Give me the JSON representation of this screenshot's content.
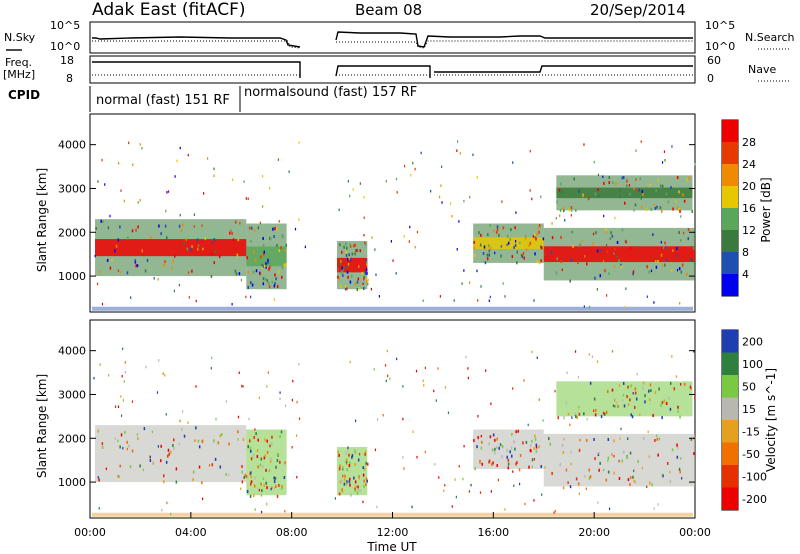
{
  "header": {
    "title": "Adak East (fitACF)",
    "beam": "Beam 08",
    "date": "20/Sep/2014"
  },
  "panels": {
    "nsky_label": "N.Sky",
    "nsky_tick_top": "10^5",
    "nsky_tick_bottom": "10^0",
    "nsearch_label": "N.Search",
    "freq_label_1": "Freq.",
    "freq_label_2": "[MHz]",
    "freq_tick_top": "18",
    "freq_tick_bottom": "8",
    "nave_label": "Nave",
    "nave_tick_top": "60",
    "nave_tick_bottom": "0",
    "cpid_label": "CPID",
    "cpid_segments": [
      "normal (fast) 151 RF",
      "normalsound (fast) 157 RF"
    ]
  },
  "colors": {
    "power_scale": [
      "#0000ee",
      "#1f4fb0",
      "#3a7a3a",
      "#5aa65a",
      "#e6c700",
      "#f08a00",
      "#e63a00",
      "#ee0000"
    ],
    "velocity_scale": [
      "#1f3fb0",
      "#2f7f3f",
      "#7ac943",
      "#b8b8b0",
      "#e6a020",
      "#f07000",
      "#e63000",
      "#ee0000"
    ]
  },
  "chart_data": [
    {
      "type": "heatmap",
      "name": "Power",
      "ylabel": "Slant Range [km]",
      "yticks": [
        "1000",
        "2000",
        "3000",
        "4000"
      ],
      "ylim": [
        180,
        4700
      ],
      "xlim": [
        0,
        24
      ],
      "colorbar_label": "Power [dB]",
      "colorbar_ticks": [
        "4",
        "8",
        "12",
        "16",
        "20",
        "24",
        "28"
      ],
      "colorbar_range": [
        0,
        32
      ],
      "echo_bands": [
        {
          "hours": [
            0.2,
            6.2
          ],
          "range_km": [
            1000,
            2300
          ],
          "core_power_db": 28
        },
        {
          "hours": [
            6.2,
            7.8
          ],
          "range_km": [
            700,
            2200
          ],
          "core_power_db": 14
        },
        {
          "hours": [
            9.8,
            11.0
          ],
          "range_km": [
            700,
            1800
          ],
          "core_power_db": 28
        },
        {
          "hours": [
            15.2,
            18.0
          ],
          "range_km": [
            1300,
            2200
          ],
          "core_power_db": 16
        },
        {
          "hours": [
            18.0,
            24.0
          ],
          "range_km": [
            900,
            2100
          ],
          "core_power_db": 28
        },
        {
          "hours": [
            18.5,
            23.9
          ],
          "range_km": [
            2500,
            3300
          ],
          "core_power_db": 10
        }
      ]
    },
    {
      "type": "heatmap",
      "name": "Velocity",
      "ylabel": "Slant Range [km]",
      "yticks": [
        "1000",
        "2000",
        "3000",
        "4000"
      ],
      "ylim": [
        180,
        4700
      ],
      "xlim": [
        0,
        24
      ],
      "xlabel": "Time UT",
      "xticks": [
        "00:00",
        "04:00",
        "08:00",
        "12:00",
        "16:00",
        "20:00",
        "00:00"
      ],
      "colorbar_label": "Velocity [m s^-1]",
      "colorbar_ticks": [
        "200",
        "100",
        "50",
        "15",
        "-15",
        "-50",
        "-100",
        "-200"
      ],
      "colorbar_range": [
        -250,
        250
      ],
      "echo_bands": [
        {
          "hours": [
            0.2,
            6.2
          ],
          "range_km": [
            1000,
            2300
          ],
          "velocity_ms": 0
        },
        {
          "hours": [
            6.2,
            7.8
          ],
          "range_km": [
            700,
            2200
          ],
          "velocity_ms": 40
        },
        {
          "hours": [
            9.8,
            11.0
          ],
          "range_km": [
            700,
            1800
          ],
          "velocity_ms": 40
        },
        {
          "hours": [
            15.2,
            18.0
          ],
          "range_km": [
            1300,
            2200
          ],
          "velocity_ms": 0
        },
        {
          "hours": [
            18.0,
            24.0
          ],
          "range_km": [
            900,
            2100
          ],
          "velocity_ms": 0
        },
        {
          "hours": [
            18.5,
            23.9
          ],
          "range_km": [
            2500,
            3300
          ],
          "velocity_ms": 30
        }
      ]
    }
  ]
}
